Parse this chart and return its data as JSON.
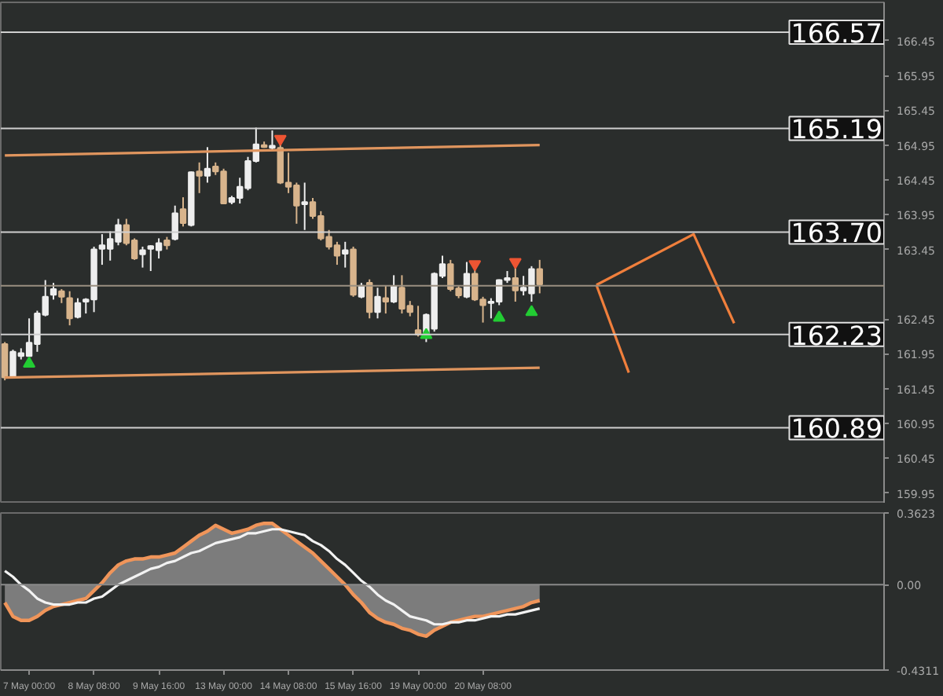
{
  "chart_data": [
    {
      "type": "candlestick",
      "categories": [
        null,
        null,
        null,
        null,
        null,
        null,
        null,
        null,
        null,
        null,
        null,
        null,
        null,
        null,
        null,
        null,
        null,
        null,
        null,
        null,
        null,
        null,
        null,
        null,
        null,
        null,
        null,
        null,
        null,
        null,
        null,
        null,
        null,
        null,
        null,
        null,
        null,
        null,
        null,
        null,
        null,
        null,
        null,
        null,
        null,
        null,
        null,
        null,
        null,
        null,
        null,
        null,
        null,
        null,
        null,
        null,
        null,
        null,
        null,
        null,
        null,
        null,
        null,
        null,
        null,
        null,
        null,
        null,
        null,
        null,
        null,
        null,
        null,
        null,
        null,
        null,
        null,
        null,
        null,
        null,
        null,
        null,
        null,
        null,
        null,
        null,
        null,
        null,
        null,
        null,
        null,
        null,
        null,
        null,
        null,
        null,
        null,
        null,
        null,
        null,
        null,
        null,
        null,
        null,
        null,
        null,
        null,
        null,
        null
      ],
      "ohlc": [
        [
          162.09,
          162.12,
          161.57,
          161.61
        ],
        [
          161.62,
          162.01,
          161.61,
          161.98
        ],
        [
          161.92,
          162.03,
          161.87,
          161.96
        ],
        [
          161.92,
          162.46,
          161.92,
          162.11
        ],
        [
          162.09,
          162.57,
          161.98,
          162.53
        ],
        [
          162.51,
          163.01,
          162.49,
          162.77
        ],
        [
          162.8,
          162.97,
          162.73,
          162.88
        ],
        [
          162.85,
          162.88,
          162.68,
          162.77
        ],
        [
          162.75,
          162.85,
          162.36,
          162.46
        ],
        [
          162.48,
          162.75,
          162.46,
          162.68
        ],
        [
          162.7,
          162.75,
          162.53,
          162.73
        ],
        [
          162.73,
          163.49,
          162.55,
          163.45
        ],
        [
          163.46,
          163.67,
          163.23,
          163.51
        ],
        [
          163.46,
          163.71,
          163.29,
          163.6
        ],
        [
          163.56,
          163.89,
          163.51,
          163.8
        ],
        [
          163.8,
          163.89,
          163.51,
          163.54
        ],
        [
          163.58,
          163.61,
          163.3,
          163.32
        ],
        [
          163.38,
          163.49,
          163.19,
          163.44
        ],
        [
          163.46,
          163.51,
          163.14,
          163.5
        ],
        [
          163.44,
          163.61,
          163.32,
          163.54
        ],
        [
          163.58,
          163.63,
          163.45,
          163.51
        ],
        [
          163.6,
          164.08,
          163.58,
          163.97
        ],
        [
          164.03,
          164.2,
          163.78,
          163.83
        ],
        [
          163.8,
          164.57,
          163.78,
          164.56
        ],
        [
          164.57,
          164.7,
          164.26,
          164.51
        ],
        [
          164.51,
          164.92,
          164.41,
          164.61
        ],
        [
          164.64,
          164.7,
          164.52,
          164.57
        ],
        [
          164.57,
          164.61,
          164.1,
          164.11
        ],
        [
          164.13,
          164.22,
          164.1,
          164.19
        ],
        [
          164.19,
          164.48,
          164.11,
          164.35
        ],
        [
          164.33,
          164.78,
          164.3,
          164.72
        ],
        [
          164.72,
          165.2,
          164.7,
          164.96
        ],
        [
          164.95,
          165.0,
          164.91,
          164.92
        ],
        [
          164.91,
          165.16,
          164.89,
          164.94
        ],
        [
          164.91,
          165.0,
          164.39,
          164.41
        ],
        [
          164.41,
          164.84,
          164.26,
          164.35
        ],
        [
          164.37,
          164.41,
          163.82,
          164.08
        ],
        [
          164.1,
          164.41,
          163.73,
          164.13
        ],
        [
          164.13,
          164.19,
          163.89,
          163.93
        ],
        [
          163.93,
          164.0,
          163.58,
          163.61
        ],
        [
          163.63,
          163.73,
          163.45,
          163.49
        ],
        [
          163.51,
          163.56,
          163.23,
          163.36
        ],
        [
          163.39,
          163.56,
          163.19,
          163.44
        ],
        [
          163.45,
          163.49,
          162.77,
          162.8
        ],
        [
          162.77,
          162.97,
          162.75,
          162.93
        ],
        [
          162.97,
          163.02,
          162.46,
          162.55
        ],
        [
          162.55,
          162.9,
          162.46,
          162.77
        ],
        [
          162.75,
          162.93,
          162.53,
          162.7
        ],
        [
          162.7,
          163.08,
          162.68,
          162.92
        ],
        [
          162.9,
          163.08,
          162.53,
          162.6
        ],
        [
          162.64,
          162.71,
          162.49,
          162.55
        ],
        [
          162.29,
          162.64,
          162.2,
          162.23
        ],
        [
          162.2,
          162.53,
          162.12,
          162.51
        ],
        [
          162.31,
          163.12,
          162.27,
          163.1
        ],
        [
          163.07,
          163.36,
          163.04,
          163.24
        ],
        [
          163.24,
          163.3,
          162.85,
          162.88
        ],
        [
          162.89,
          162.92,
          162.75,
          162.79
        ],
        [
          162.77,
          163.27,
          162.75,
          163.1
        ],
        [
          163.1,
          163.16,
          162.71,
          162.73
        ],
        [
          162.73,
          162.77,
          162.4,
          162.65
        ],
        [
          162.68,
          162.75,
          162.46,
          162.7
        ],
        [
          162.7,
          163.02,
          162.65,
          163.01
        ],
        [
          163.01,
          163.14,
          162.97,
          163.04
        ],
        [
          163.04,
          163.19,
          162.7,
          162.86
        ],
        [
          162.86,
          163.07,
          162.79,
          162.9
        ],
        [
          162.82,
          163.21,
          162.7,
          163.17
        ],
        [
          163.17,
          163.3,
          162.82,
          162.95
        ],
        null,
        null,
        null,
        null,
        null,
        null,
        null,
        null,
        null,
        null,
        null,
        null,
        null,
        null,
        null,
        null,
        null,
        null,
        null,
        null,
        null,
        null,
        null,
        null,
        null,
        null,
        null,
        null,
        null,
        null,
        null,
        null,
        null,
        null,
        null,
        null,
        null,
        null,
        null,
        null,
        null,
        null
      ],
      "colors": [
        "#d8b48c",
        "#eeeeee",
        "#eeeeee",
        "#eeeeee",
        "#eeeeee",
        "#eeeeee",
        "#eeeeee",
        "#d8b48c",
        "#d8b48c",
        "#eeeeee",
        "#eeeeee",
        "#eeeeee",
        "#eeeeee",
        "#eeeeee",
        "#eeeeee",
        "#d8b48c",
        "#d8b48c",
        "#eeeeee",
        "#eeeeee",
        "#eeeeee",
        "#d8b48c",
        "#eeeeee",
        "#d8b48c",
        "#eeeeee",
        "#d8b48c",
        "#eeeeee",
        "#d8b48c",
        "#d8b48c",
        "#eeeeee",
        "#eeeeee",
        "#eeeeee",
        "#eeeeee",
        "#d8b48c",
        "#eeeeee",
        "#d8b48c",
        "#d8b48c",
        "#d8b48c",
        "#eeeeee",
        "#d8b48c",
        "#d8b48c",
        "#d8b48c",
        "#d8b48c",
        "#eeeeee",
        "#d8b48c",
        "#eeeeee",
        "#d8b48c",
        "#eeeeee",
        "#d8b48c",
        "#eeeeee",
        "#d8b48c",
        "#d8b48c",
        "#d8b48c",
        "#eeeeee",
        "#eeeeee",
        "#eeeeee",
        "#d8b48c",
        "#d8b48c",
        "#eeeeee",
        "#d8b48c",
        "#d8b48c",
        "#eeeeee",
        "#eeeeee",
        "#eeeeee",
        "#d8b48c",
        "#eeeeee",
        "#eeeeee",
        "#d8b48c",
        null,
        null,
        null,
        null,
        null,
        null,
        null,
        null,
        null,
        null,
        null,
        null,
        null,
        null,
        null,
        null,
        null,
        null,
        null,
        null,
        null,
        null,
        null,
        null,
        null,
        null,
        null,
        null,
        null,
        null,
        null,
        null,
        null,
        null,
        null,
        null,
        null,
        null,
        null,
        null,
        null,
        null
      ],
      "series": [
        {
          "type": "line",
          "color": "#e0955e",
          "values": [
            164.8,
            null,
            null,
            null,
            null,
            null,
            null,
            null,
            null,
            null,
            null,
            null,
            null,
            null,
            null,
            null,
            null,
            null,
            null,
            null,
            null,
            null,
            null,
            null,
            null,
            null,
            null,
            null,
            null,
            null,
            null,
            null,
            null,
            null,
            null,
            null,
            null,
            null,
            null,
            null,
            null,
            null,
            null,
            null,
            null,
            null,
            null,
            null,
            null,
            null,
            null,
            null,
            null,
            null,
            null,
            null,
            null,
            null,
            null,
            null,
            null,
            null,
            null,
            null,
            null,
            null,
            164.95,
            null,
            null,
            null,
            null,
            null,
            null,
            null,
            null,
            null,
            null,
            null,
            null,
            null,
            null,
            null,
            null,
            null,
            null,
            null,
            null,
            null,
            null,
            null,
            null,
            null,
            null,
            null,
            null,
            null,
            null,
            null,
            null,
            null,
            null,
            null,
            null,
            null,
            null,
            null,
            null,
            null,
            null
          ]
        },
        {
          "type": "line",
          "color": "#e0955e",
          "values": [
            161.61,
            null,
            null,
            null,
            null,
            null,
            null,
            null,
            null,
            null,
            null,
            null,
            null,
            null,
            null,
            null,
            null,
            null,
            null,
            null,
            null,
            null,
            null,
            null,
            null,
            null,
            null,
            null,
            null,
            null,
            null,
            null,
            null,
            null,
            null,
            null,
            null,
            null,
            null,
            null,
            null,
            null,
            null,
            null,
            null,
            null,
            null,
            null,
            null,
            null,
            null,
            null,
            null,
            null,
            null,
            null,
            null,
            null,
            null,
            null,
            null,
            null,
            null,
            null,
            null,
            null,
            161.75,
            null,
            null,
            null,
            null,
            null,
            null,
            null,
            null,
            null,
            null,
            null,
            null,
            null,
            null,
            null,
            null,
            null,
            null,
            null,
            null,
            null,
            null,
            null,
            null,
            null,
            null,
            null,
            null,
            null,
            null,
            null,
            null,
            null,
            null,
            null,
            null,
            null,
            null,
            null,
            null,
            null,
            null
          ]
        },
        {
          "type": "line",
          "color": "#f07f3c",
          "values": [
            null,
            null,
            null,
            null,
            null,
            null,
            null,
            null,
            null,
            null,
            null,
            null,
            null,
            null,
            null,
            null,
            null,
            null,
            null,
            null,
            null,
            null,
            null,
            null,
            null,
            null,
            null,
            null,
            null,
            null,
            null,
            null,
            null,
            null,
            null,
            null,
            null,
            null,
            null,
            null,
            null,
            null,
            null,
            null,
            null,
            null,
            null,
            null,
            null,
            null,
            null,
            null,
            null,
            null,
            null,
            null,
            null,
            null,
            null,
            null,
            null,
            null,
            null,
            null,
            null,
            null,
            null,
            null,
            null,
            null,
            null,
            null,
            null,
            162.94,
            null,
            null,
            null,
            null,
            null,
            null,
            null,
            null,
            null,
            null,
            null,
            163.67,
            null,
            null,
            null,
            null,
            162.39,
            null,
            null,
            null,
            null,
            null,
            null,
            null,
            null,
            null,
            null,
            null,
            null,
            null,
            null,
            null,
            null,
            null,
            null
          ]
        },
        {
          "type": "line",
          "color": "#f07f3c",
          "values": [
            null,
            null,
            null,
            null,
            null,
            null,
            null,
            null,
            null,
            null,
            null,
            null,
            null,
            null,
            null,
            null,
            null,
            null,
            null,
            null,
            null,
            null,
            null,
            null,
            null,
            null,
            null,
            null,
            null,
            null,
            null,
            null,
            null,
            null,
            null,
            null,
            null,
            null,
            null,
            null,
            null,
            null,
            null,
            null,
            null,
            null,
            null,
            null,
            null,
            null,
            null,
            null,
            null,
            null,
            null,
            null,
            null,
            null,
            null,
            null,
            null,
            null,
            null,
            null,
            null,
            null,
            null,
            null,
            null,
            null,
            null,
            null,
            null,
            162.94,
            null,
            null,
            null,
            161.68,
            null,
            null,
            null,
            null,
            null,
            null,
            null,
            null,
            null,
            null,
            null,
            null,
            null,
            null,
            null,
            null,
            null,
            null,
            null,
            null,
            null,
            null,
            null,
            null,
            null,
            null,
            null,
            null,
            null,
            null,
            null
          ]
        },
        {
          "type": "scatter",
          "color": "#22cc33",
          "marker": "triangle",
          "values": [
            null,
            null,
            null,
            161.81,
            null,
            null,
            null,
            null,
            null,
            null,
            null,
            null,
            null,
            null,
            null,
            null,
            null,
            null,
            null,
            null,
            null,
            null,
            null,
            null,
            null,
            null,
            null,
            null,
            null,
            null,
            null,
            null,
            null,
            null,
            null,
            null,
            null,
            null,
            null,
            null,
            null,
            null,
            null,
            null,
            null,
            null,
            null,
            null,
            null,
            null,
            null,
            null,
            162.22,
            null,
            null,
            null,
            null,
            null,
            null,
            null,
            null,
            162.47,
            null,
            null,
            null,
            162.55,
            null,
            null,
            null,
            null,
            null,
            null,
            null,
            null,
            null,
            null,
            null,
            null,
            null,
            null,
            null,
            null,
            null,
            null,
            null,
            null,
            null,
            null,
            null,
            null,
            null,
            null,
            null,
            null,
            null,
            null,
            null,
            null,
            null,
            null,
            null,
            null,
            null,
            null,
            null,
            null,
            null,
            null,
            null
          ]
        },
        {
          "type": "scatter",
          "color": "#ee5533",
          "values": [
            null,
            null,
            null,
            null,
            null,
            null,
            null,
            null,
            null,
            null,
            null,
            null,
            null,
            null,
            null,
            null,
            null,
            null,
            null,
            null,
            null,
            null,
            null,
            null,
            null,
            null,
            null,
            null,
            null,
            null,
            null,
            null,
            null,
            null,
            165.04,
            null,
            null,
            null,
            null,
            null,
            null,
            null,
            null,
            null,
            null,
            null,
            null,
            null,
            null,
            null,
            null,
            null,
            null,
            null,
            null,
            null,
            null,
            null,
            163.24,
            null,
            null,
            null,
            null,
            163.27,
            null,
            null,
            null,
            null,
            null,
            null,
            null,
            null,
            null,
            null,
            null,
            null,
            null,
            null,
            null,
            null,
            null,
            null,
            null,
            null,
            null,
            null,
            null,
            null,
            null,
            null,
            null,
            null,
            null,
            null,
            null,
            null,
            null,
            null,
            null,
            null,
            null,
            null,
            null,
            null,
            null,
            null,
            null,
            null,
            null
          ]
        }
      ],
      "ref_lines": [
        {
          "axis": "y",
          "value": 166.57,
          "label": "166.57",
          "color": "#cfcfcf"
        },
        {
          "axis": "y",
          "value": 165.19,
          "label": "165.19",
          "color": "#cfcfcf"
        },
        {
          "axis": "y",
          "value": 163.7,
          "label": "163.70",
          "color": "#cfcfcf"
        },
        {
          "axis": "y",
          "value": 162.23,
          "label": "162.23",
          "color": "#cfcfcf"
        },
        {
          "axis": "y",
          "value": 160.89,
          "label": "160.89",
          "color": "#cfcfcf"
        },
        {
          "axis": "y",
          "value": 162.93,
          "color": "#9a8f80"
        }
      ],
      "ylim": [
        159.8,
        167.0
      ],
      "yticks": [
        166.45,
        165.95,
        165.45,
        164.95,
        164.45,
        163.95,
        163.45,
        162.45,
        161.95,
        161.45,
        160.95,
        160.45,
        159.95
      ],
      "tick_labels": "y"
    },
    {
      "type": "line",
      "categories": [
        null,
        null,
        null,
        "7 May 00:00",
        null,
        null,
        null,
        null,
        null,
        null,
        null,
        "8 May 08:00",
        null,
        null,
        null,
        null,
        null,
        null,
        null,
        "9 May 16:00",
        null,
        null,
        null,
        null,
        null,
        null,
        null,
        "13 May 00:00",
        null,
        null,
        null,
        null,
        null,
        null,
        null,
        "14 May 08:00",
        null,
        null,
        null,
        null,
        null,
        null,
        null,
        "15 May 16:00",
        null,
        null,
        null,
        null,
        null,
        null,
        null,
        "19 May 00:00",
        null,
        null,
        null,
        null,
        null,
        null,
        null,
        "20 May 08:00",
        null,
        null,
        null,
        null,
        null,
        null,
        null,
        null,
        null,
        null,
        null,
        null,
        null,
        null,
        null,
        null,
        null,
        null,
        null,
        null,
        null,
        null,
        null,
        null,
        null,
        null,
        null,
        null,
        null,
        null,
        null,
        null,
        null,
        null,
        null,
        null,
        null,
        null,
        null,
        null,
        null,
        null,
        null,
        null,
        null,
        null,
        null,
        null,
        null
      ],
      "series": [
        {
          "type": "area",
          "color": "#f0955a",
          "values": [
            -0.09,
            -0.16,
            -0.18,
            -0.18,
            -0.16,
            -0.13,
            -0.11,
            -0.1,
            -0.09,
            -0.08,
            -0.07,
            -0.03,
            0.01,
            0.06,
            0.1,
            0.12,
            0.13,
            0.13,
            0.14,
            0.14,
            0.15,
            0.16,
            0.19,
            0.22,
            0.25,
            0.27,
            0.3,
            0.28,
            0.26,
            0.27,
            0.28,
            0.3,
            0.31,
            0.31,
            0.28,
            0.25,
            0.22,
            0.19,
            0.16,
            0.12,
            0.08,
            0.04,
            0.0,
            -0.05,
            -0.09,
            -0.14,
            -0.17,
            -0.19,
            -0.2,
            -0.22,
            -0.23,
            -0.25,
            -0.26,
            -0.23,
            -0.21,
            -0.19,
            -0.18,
            -0.17,
            -0.16,
            -0.16,
            -0.15,
            -0.14,
            -0.13,
            -0.12,
            -0.11,
            -0.09,
            -0.08,
            null,
            null,
            null,
            null,
            null,
            null,
            null,
            null,
            null,
            null,
            null,
            null,
            null,
            null,
            null,
            null,
            null,
            null,
            null,
            null,
            null,
            null,
            null,
            null,
            null,
            null,
            null,
            null,
            null,
            null,
            null,
            null,
            null,
            null,
            null,
            null,
            null,
            null,
            null,
            null,
            null,
            null
          ]
        },
        {
          "type": "line",
          "color": "#f2f2f2",
          "values": [
            0.07,
            0.04,
            0.0,
            -0.03,
            -0.07,
            -0.09,
            -0.1,
            -0.1,
            -0.1,
            -0.09,
            -0.09,
            -0.07,
            -0.06,
            -0.03,
            0.0,
            0.02,
            0.04,
            0.06,
            0.08,
            0.09,
            0.11,
            0.12,
            0.14,
            0.16,
            0.17,
            0.19,
            0.21,
            0.22,
            0.23,
            0.24,
            0.26,
            0.26,
            0.27,
            0.28,
            0.28,
            0.27,
            0.26,
            0.25,
            0.22,
            0.2,
            0.17,
            0.13,
            0.1,
            0.06,
            0.02,
            -0.01,
            -0.05,
            -0.08,
            -0.1,
            -0.13,
            -0.16,
            -0.17,
            -0.18,
            -0.2,
            -0.2,
            -0.19,
            -0.19,
            -0.18,
            -0.18,
            -0.17,
            -0.16,
            -0.16,
            -0.15,
            -0.15,
            -0.14,
            -0.13,
            -0.12,
            null,
            null,
            null,
            null,
            null,
            null,
            null,
            null,
            null,
            null,
            null,
            null,
            null,
            null,
            null,
            null,
            null,
            null,
            null,
            null,
            null,
            null,
            null,
            null,
            null,
            null,
            null,
            null,
            null,
            null,
            null,
            null,
            null,
            null,
            null,
            null,
            null,
            null,
            null,
            null,
            null,
            null
          ]
        }
      ],
      "ref_lines": [
        {
          "axis": "y",
          "value": 0,
          "color": "#8a8a8a"
        }
      ],
      "ylim": [
        -0.4311,
        0.3623
      ],
      "yticks": [
        0.3623,
        {
          "value": 0,
          "label": "0.00"
        },
        -0.4311
      ]
    }
  ]
}
